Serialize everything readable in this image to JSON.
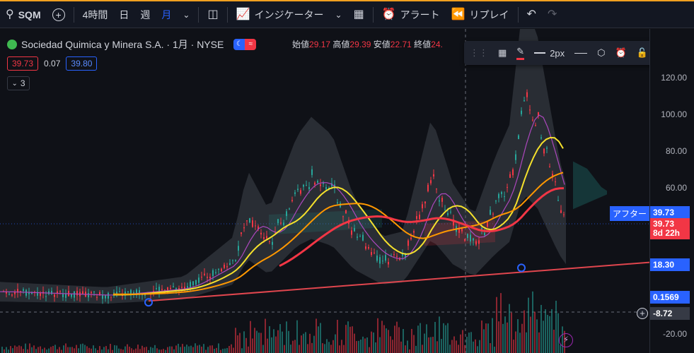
{
  "toolbar": {
    "symbol": "SQM",
    "interval_4h": "4時間",
    "interval_day": "日",
    "interval_week": "週",
    "interval_month": "月",
    "indicators": "インジケーター",
    "alert": "アラート",
    "replay": "リプレイ"
  },
  "legend": {
    "title": "Sociedad Quimica y Minera S.A. · 1月 · NYSE",
    "open_label": "始値",
    "open": "29.17",
    "high_label": "高値",
    "high": "29.39",
    "low_label": "安値",
    "low": "22.71",
    "close_label": "終値",
    "close": "24.",
    "bid": "39.73",
    "spread": "0.07",
    "ask": "39.80",
    "indicator_count": "3"
  },
  "drawbar": {
    "width_label": "2px"
  },
  "axis": {
    "ticks": [
      "120.00",
      "100.00",
      "80.00",
      "60.00",
      "-20.00"
    ]
  },
  "tags": {
    "after_label": "アフター",
    "after_price": "39.73",
    "last_price": "39.73",
    "countdown": "8d 22h",
    "line_price": "18.30",
    "low_price": "0.1569",
    "cursor_price": "-8.72"
  },
  "colors": {
    "accent": "#2962ff",
    "down": "#f23645",
    "up": "#26a69a",
    "ma_yellow": "#f5e12c",
    "ma_orange": "#ff9800",
    "ma_red": "#f23645",
    "band": "#5d606b"
  }
}
